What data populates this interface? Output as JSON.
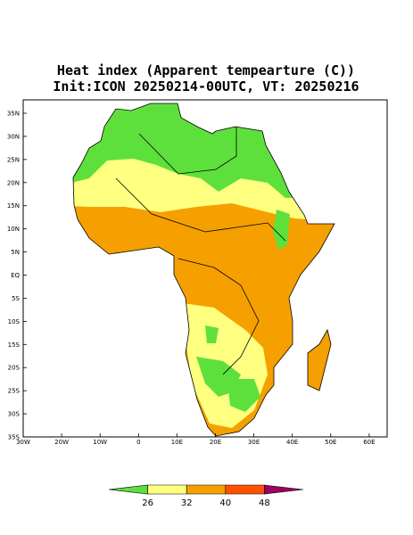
{
  "map": {
    "title": "Heat index (Apparent tempearture (C))",
    "subtitle": "Init:ICON 20250214-00UTC, VT: 20250216",
    "lat_labels": [
      "35N",
      "30N",
      "25N",
      "20N",
      "15N",
      "10N",
      "5N",
      "EQ",
      "5S",
      "10S",
      "15S",
      "20S",
      "25S",
      "30S",
      "35S"
    ],
    "lon_labels": [
      "30W",
      "20W",
      "10W",
      "0",
      "10E",
      "20E",
      "30E",
      "40E",
      "50E",
      "60E"
    ],
    "colorbar": {
      "ticks": [
        "26",
        "32",
        "40",
        "48"
      ],
      "colors": [
        "#5ee03c",
        "#ffff80",
        "#f5a000",
        "#ff5000",
        "#9c0060"
      ]
    }
  }
}
